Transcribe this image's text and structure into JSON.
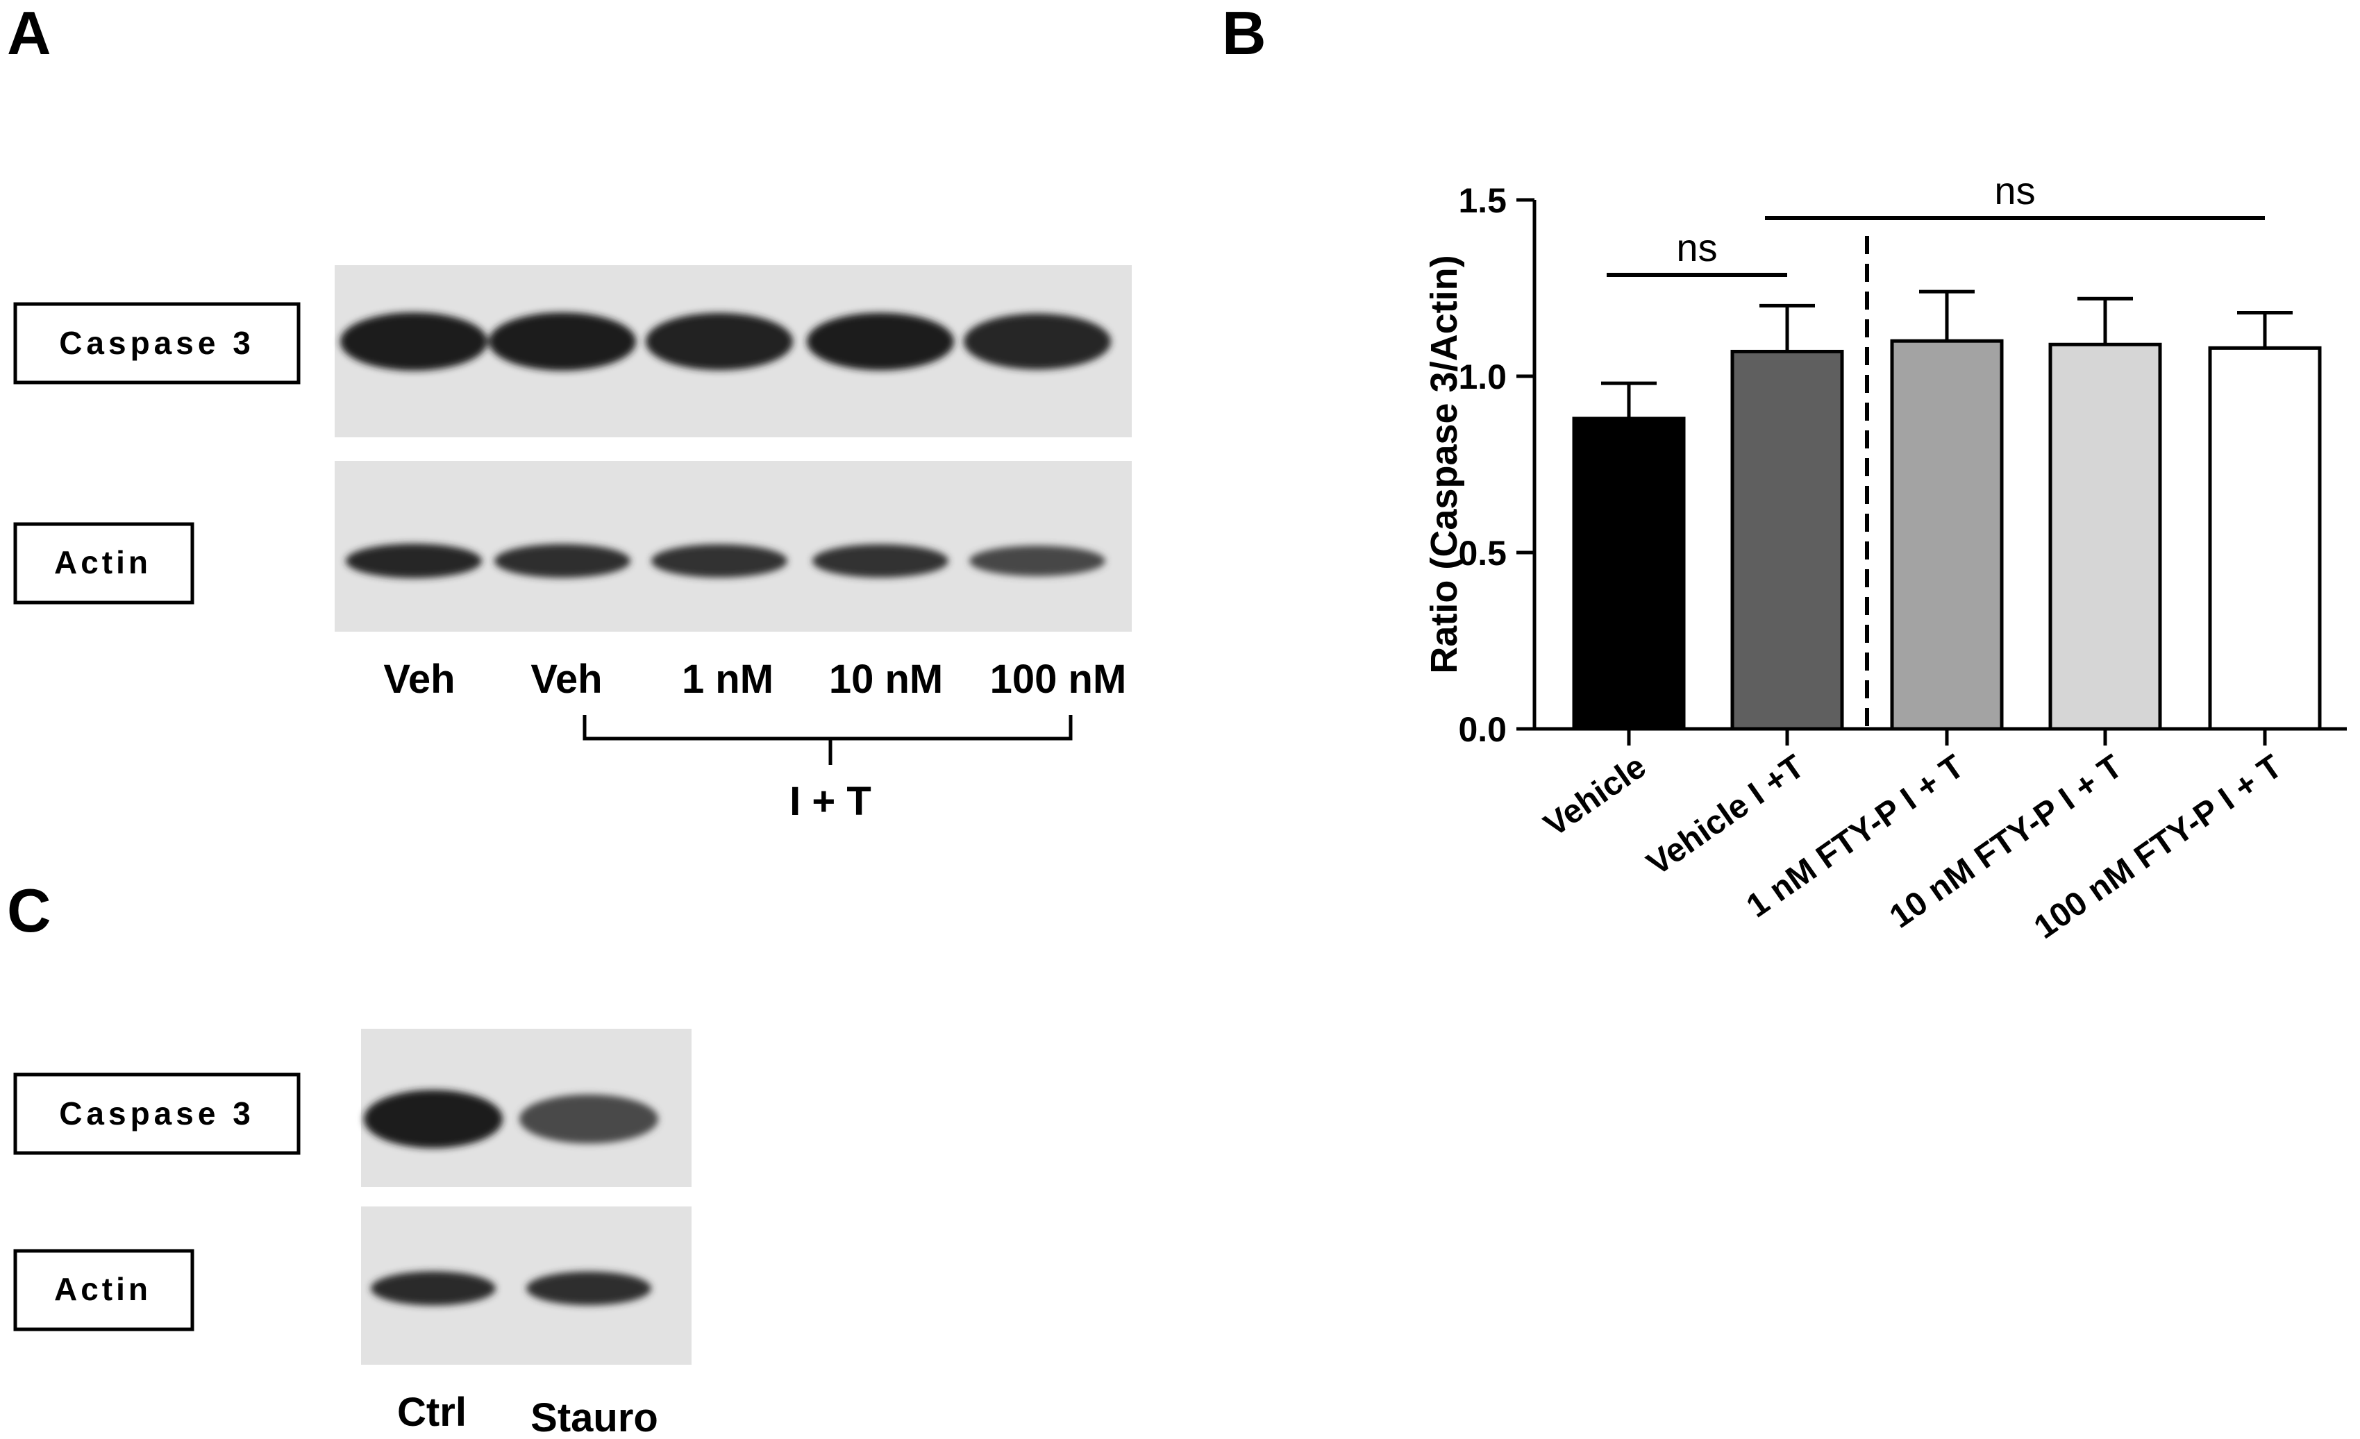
{
  "panels": {
    "A": {
      "label": "A",
      "rows": [
        {
          "label": "Caspase 3",
          "intensities": [
            1.0,
            1.0,
            0.97,
            0.98,
            0.93
          ],
          "band_weight": "thick"
        },
        {
          "label": "Actin",
          "intensities": [
            0.92,
            0.88,
            0.86,
            0.86,
            0.72
          ],
          "band_weight": "thin"
        }
      ],
      "lanes": [
        "Veh",
        "Veh",
        "1 nM",
        "10 nM",
        "100 nM"
      ],
      "bracket_label": "I + T"
    },
    "B": {
      "label": "B"
    },
    "C": {
      "label": "C",
      "rows": [
        {
          "label": "Caspase 3",
          "intensities": [
            1.0,
            0.7
          ],
          "band_weight": "thick"
        },
        {
          "label": "Actin",
          "intensities": [
            0.9,
            0.88
          ],
          "band_weight": "thin"
        }
      ],
      "lanes": [
        "Ctrl",
        "Stauro"
      ]
    }
  },
  "chart_data": {
    "type": "bar",
    "ylabel": "Ratio (Caspase 3/Actin)",
    "ylim": [
      0.0,
      1.5
    ],
    "yticks": [
      "0.0",
      "0.5",
      "1.0",
      "1.5"
    ],
    "ytick_values": [
      0.0,
      0.5,
      1.0,
      1.5
    ],
    "categories": [
      "Vehicle",
      "Vehicle I +T",
      "1 nM FTY-P I + T",
      "10 nM FTY-P I + T",
      "100 nM FTY-P I + T"
    ],
    "values": [
      0.88,
      1.07,
      1.1,
      1.09,
      1.08
    ],
    "errors": [
      0.1,
      0.13,
      0.14,
      0.13,
      0.1
    ],
    "colors": [
      "#000000",
      "#5f5f5f",
      "#a3a3a3",
      "#d6d6d6",
      "#ffffff"
    ],
    "significance": [
      {
        "label": "ns",
        "from": 0,
        "to": 1
      },
      {
        "label": "ns",
        "from": 1,
        "to": 4
      }
    ],
    "divider_after_index": 1,
    "grid": false
  }
}
